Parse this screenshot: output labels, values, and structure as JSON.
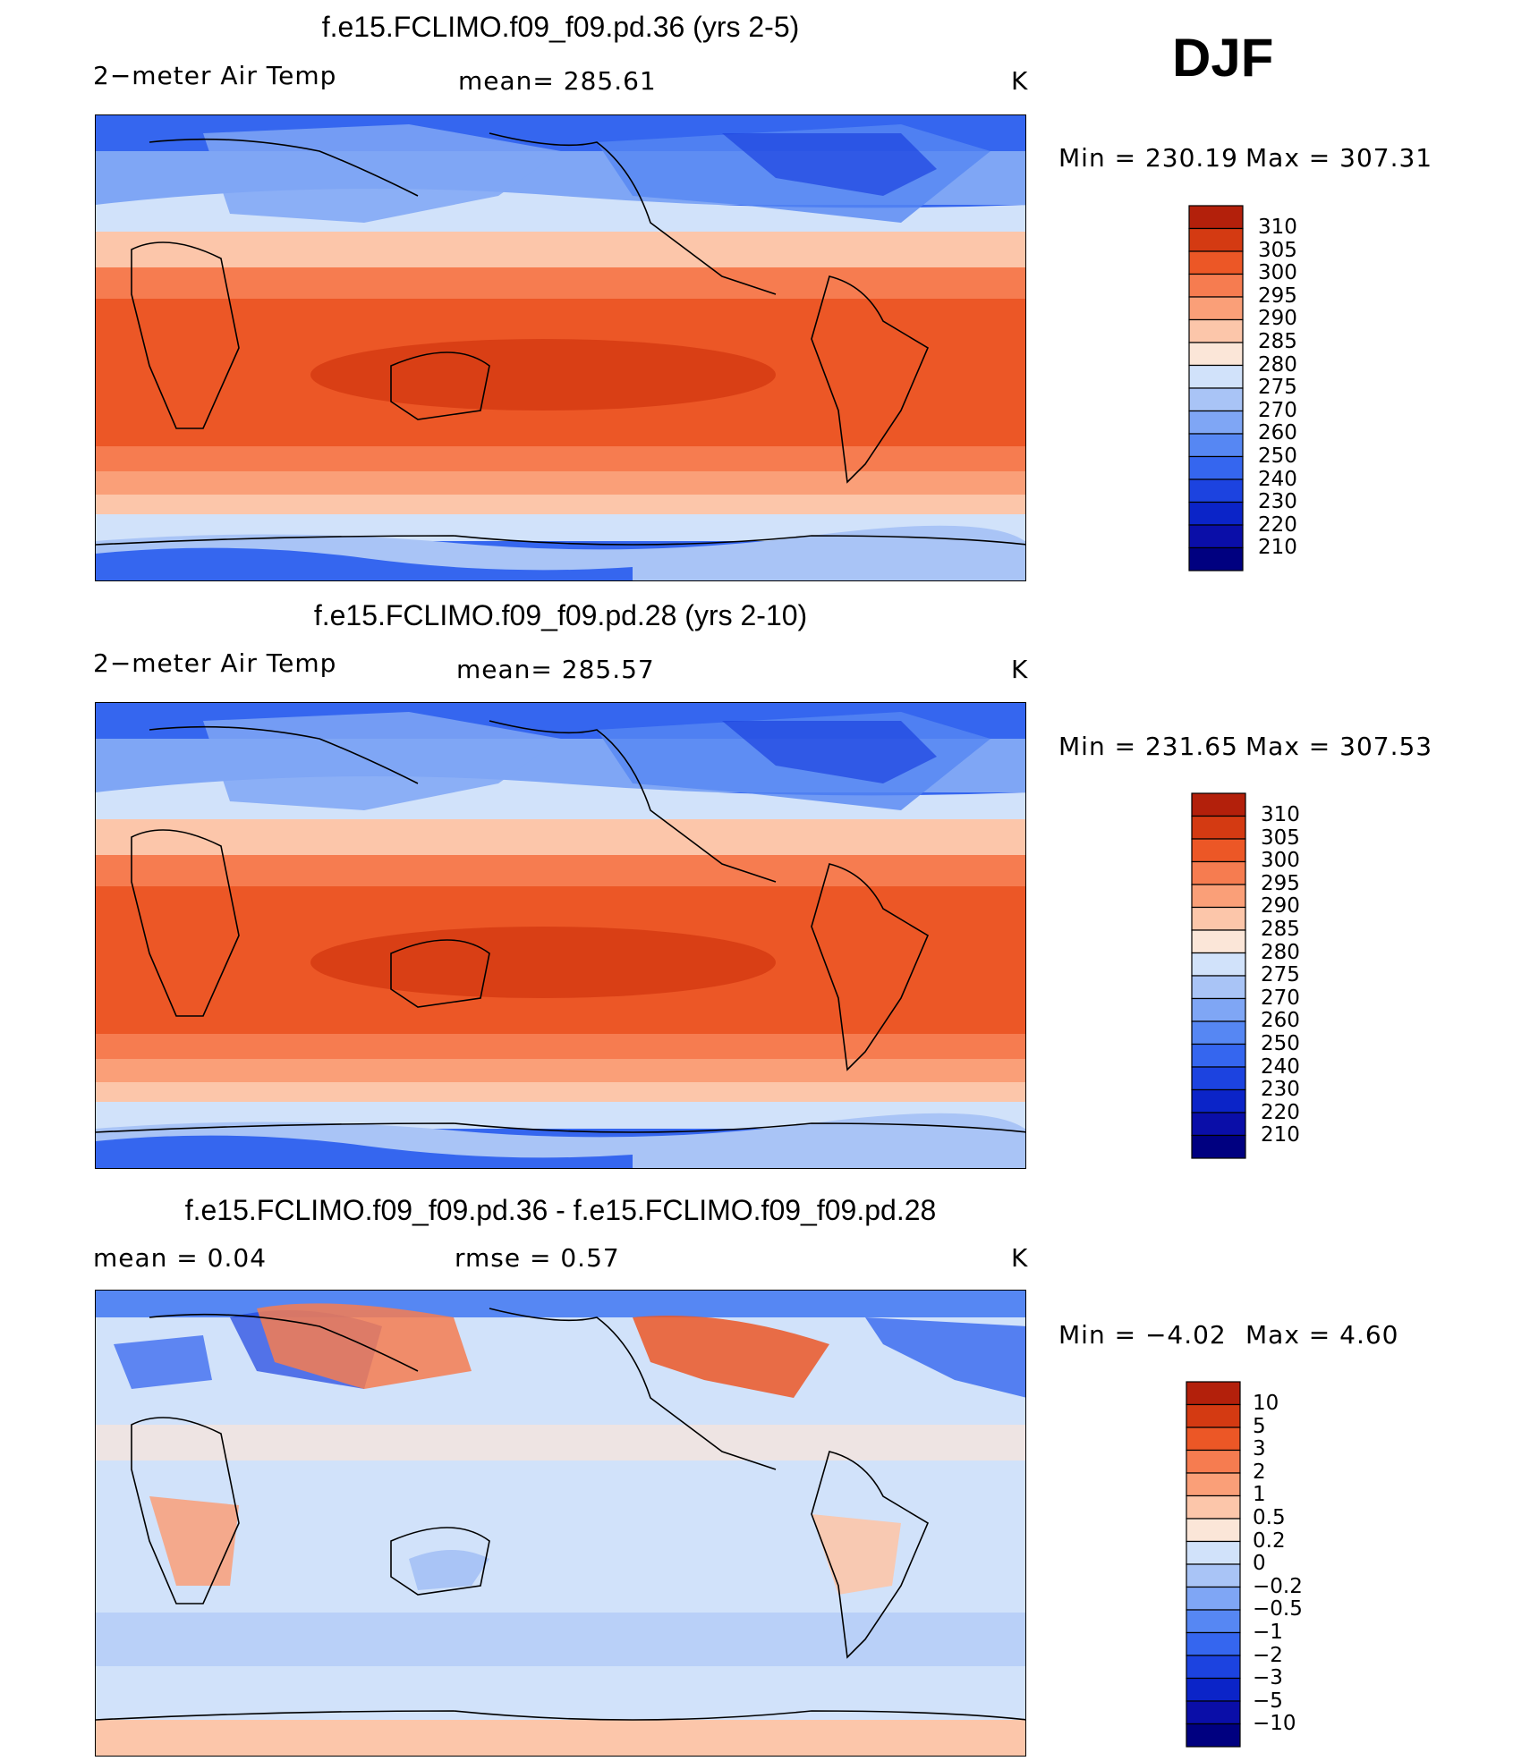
{
  "season": "DJF",
  "units": "K",
  "colors": {
    "abs": [
      "#000080",
      "#0a0ea8",
      "#0b24c8",
      "#1c43e0",
      "#3566ef",
      "#5687f3",
      "#7fa6f5",
      "#a9c4f6",
      "#d1e2fa",
      "#fbe6d8",
      "#fcc6aa",
      "#fa9f78",
      "#f67c50",
      "#ec5726",
      "#d43a12",
      "#b3200b",
      "#8c0d09"
    ],
    "diff": [
      "#000080",
      "#0a0ea8",
      "#0b24c8",
      "#1c43e0",
      "#3566ef",
      "#5687f3",
      "#7fa6f5",
      "#a9c4f6",
      "#d1e2fa",
      "#fbe6d8",
      "#fcc6aa",
      "#fa9f78",
      "#f67c50",
      "#ec5726",
      "#d43a12",
      "#b3200b",
      "#8c0d09"
    ]
  },
  "panels": [
    {
      "title": "f.e15.FCLIMO.f09_f09.pd.36 (yrs 2-5)",
      "left_label": "2−meter Air Temp",
      "center_label": "mean=  285.61",
      "units": "K",
      "min_label": "Min  =  230.19",
      "max_label": "Max  =  307.31",
      "colorbar_labels": [
        "310",
        "305",
        "300",
        "295",
        "290",
        "285",
        "280",
        "275",
        "270",
        "260",
        "250",
        "240",
        "230",
        "220",
        "210"
      ]
    },
    {
      "title": "f.e15.FCLIMO.f09_f09.pd.28 (yrs 2-10)",
      "left_label": "2−meter Air Temp",
      "center_label": "mean=  285.57",
      "units": "K",
      "min_label": "Min  =  231.65",
      "max_label": "Max  =  307.53",
      "colorbar_labels": [
        "310",
        "305",
        "300",
        "295",
        "290",
        "285",
        "280",
        "275",
        "270",
        "260",
        "250",
        "240",
        "230",
        "220",
        "210"
      ]
    },
    {
      "title": "f.e15.FCLIMO.f09_f09.pd.36 - f.e15.FCLIMO.f09_f09.pd.28",
      "left_label": "mean  =     0.04",
      "center_label": "rmse  =     0.57",
      "units": "K",
      "min_label": "Min  =    −4.02",
      "max_label": "Max  =     4.60",
      "colorbar_labels": [
        "10",
        "5",
        "3",
        "2",
        "1",
        "0.5",
        "0.2",
        "0",
        "−0.2",
        "−0.5",
        "−1",
        "−2",
        "−3",
        "−5",
        "−10"
      ]
    }
  ]
}
